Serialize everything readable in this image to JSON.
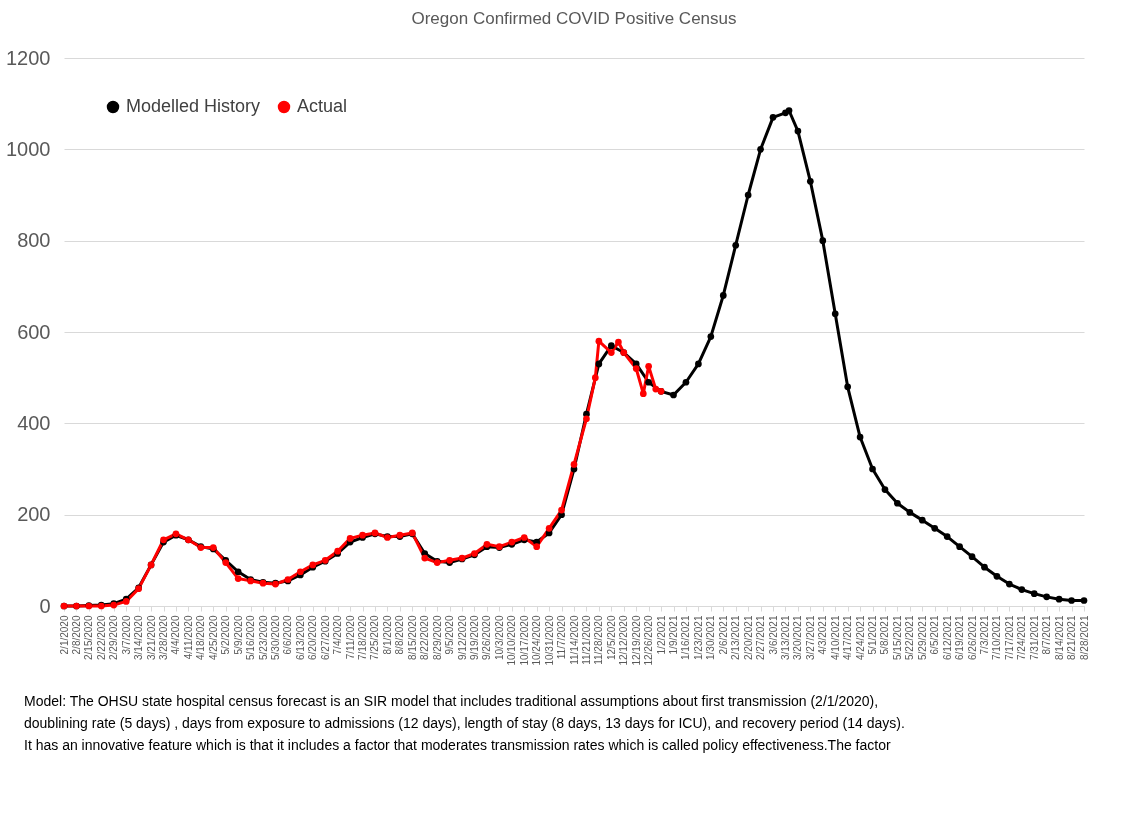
{
  "chart_data": {
    "type": "line",
    "title": "Oregon Confirmed COVID Positive Census",
    "x": [
      "2020-02-01",
      "2020-02-08",
      "2020-02-15",
      "2020-02-22",
      "2020-02-29",
      "2020-03-07",
      "2020-03-14",
      "2020-03-21",
      "2020-03-28",
      "2020-04-04",
      "2020-04-11",
      "2020-04-18",
      "2020-04-25",
      "2020-05-02",
      "2020-05-09",
      "2020-05-16",
      "2020-05-23",
      "2020-05-30",
      "2020-06-06",
      "2020-06-13",
      "2020-06-20",
      "2020-06-27",
      "2020-07-04",
      "2020-07-11",
      "2020-07-18",
      "2020-07-25",
      "2020-08-01",
      "2020-08-08",
      "2020-08-15",
      "2020-08-22",
      "2020-08-29",
      "2020-09-05",
      "2020-09-12",
      "2020-09-19",
      "2020-09-26",
      "2020-10-03",
      "2020-10-10",
      "2020-10-17",
      "2020-10-24",
      "2020-10-31",
      "2020-11-07",
      "2020-11-14",
      "2020-11-21",
      "2020-11-28",
      "2020-12-05",
      "2020-12-12",
      "2020-12-19",
      "2020-12-26",
      "2021-01-02",
      "2021-01-09",
      "2021-01-16",
      "2021-01-23",
      "2021-01-30",
      "2021-02-06",
      "2021-02-13",
      "2021-02-20",
      "2021-02-27",
      "2021-03-06",
      "2021-03-13",
      "2021-03-15",
      "2021-03-20",
      "2021-03-27",
      "2021-04-03",
      "2021-04-10",
      "2021-04-17",
      "2021-04-24",
      "2021-05-01",
      "2021-05-08",
      "2021-05-15",
      "2021-05-22",
      "2021-05-29",
      "2021-06-05",
      "2021-06-12",
      "2021-06-19",
      "2021-06-26",
      "2021-07-03",
      "2021-07-10",
      "2021-07-17",
      "2021-07-24",
      "2021-07-31",
      "2021-08-07",
      "2021-08-14",
      "2021-08-21",
      "2021-08-28"
    ],
    "series": [
      {
        "name": "Modelled History",
        "color": "#000000",
        "values": [
          0,
          0,
          1,
          2,
          5,
          15,
          40,
          90,
          140,
          155,
          145,
          130,
          125,
          100,
          75,
          58,
          52,
          50,
          55,
          68,
          85,
          98,
          115,
          140,
          150,
          158,
          152,
          152,
          158,
          115,
          98,
          95,
          103,
          112,
          130,
          128,
          135,
          145,
          140,
          160,
          200,
          300,
          420,
          530,
          570,
          555,
          530,
          490,
          470,
          462,
          490,
          530,
          590,
          680,
          790,
          900,
          1000,
          1070,
          1080,
          1085,
          1040,
          930,
          800,
          640,
          480,
          370,
          300,
          255,
          225,
          205,
          188,
          170,
          152,
          130,
          108,
          85,
          65,
          48,
          36,
          27,
          20,
          15,
          12,
          12
        ]
      },
      {
        "name": "Actual",
        "color": "#ff0000",
        "x": [
          "2020-02-01",
          "2020-02-08",
          "2020-02-15",
          "2020-02-22",
          "2020-02-29",
          "2020-03-07",
          "2020-03-14",
          "2020-03-21",
          "2020-03-28",
          "2020-04-04",
          "2020-04-11",
          "2020-04-18",
          "2020-04-25",
          "2020-05-02",
          "2020-05-09",
          "2020-05-16",
          "2020-05-23",
          "2020-05-30",
          "2020-06-06",
          "2020-06-13",
          "2020-06-20",
          "2020-06-27",
          "2020-07-04",
          "2020-07-11",
          "2020-07-18",
          "2020-07-25",
          "2020-08-01",
          "2020-08-08",
          "2020-08-15",
          "2020-08-22",
          "2020-08-29",
          "2020-09-05",
          "2020-09-12",
          "2020-09-19",
          "2020-09-26",
          "2020-10-03",
          "2020-10-10",
          "2020-10-17",
          "2020-10-24",
          "2020-10-31",
          "2020-11-07",
          "2020-11-14",
          "2020-11-21",
          "2020-11-26",
          "2020-11-28",
          "2020-12-05",
          "2020-12-09",
          "2020-12-12",
          "2020-12-19",
          "2020-12-23",
          "2020-12-26",
          "2020-12-30",
          "2021-01-02"
        ],
        "values": [
          0,
          0,
          0,
          0,
          2,
          10,
          38,
          90,
          145,
          158,
          145,
          128,
          128,
          95,
          60,
          55,
          50,
          48,
          58,
          75,
          90,
          100,
          120,
          148,
          155,
          160,
          150,
          155,
          160,
          105,
          95,
          100,
          105,
          115,
          135,
          130,
          140,
          150,
          130,
          170,
          210,
          310,
          410,
          500,
          580,
          555,
          578,
          555,
          520,
          465,
          525,
          475,
          470
        ]
      }
    ],
    "xlim": [
      "2020-02-01",
      "2021-08-28"
    ],
    "xticks": [
      {
        "value": "2020-02-01",
        "label": "2/1/2020"
      },
      {
        "value": "2020-02-08",
        "label": "2/8/2020"
      },
      {
        "value": "2020-02-15",
        "label": "2/15/2020"
      },
      {
        "value": "2020-02-22",
        "label": "2/22/2020"
      },
      {
        "value": "2020-02-29",
        "label": "2/29/2020"
      },
      {
        "value": "2020-03-07",
        "label": "3/7/2020"
      },
      {
        "value": "2020-03-14",
        "label": "3/14/2020"
      },
      {
        "value": "2020-03-21",
        "label": "3/21/2020"
      },
      {
        "value": "2020-03-28",
        "label": "3/28/2020"
      },
      {
        "value": "2020-04-04",
        "label": "4/4/2020"
      },
      {
        "value": "2020-04-11",
        "label": "4/11/2020"
      },
      {
        "value": "2020-04-18",
        "label": "4/18/2020"
      },
      {
        "value": "2020-04-25",
        "label": "4/25/2020"
      },
      {
        "value": "2020-05-02",
        "label": "5/2/2020"
      },
      {
        "value": "2020-05-09",
        "label": "5/9/2020"
      },
      {
        "value": "2020-05-16",
        "label": "5/16/2020"
      },
      {
        "value": "2020-05-23",
        "label": "5/23/2020"
      },
      {
        "value": "2020-05-30",
        "label": "5/30/2020"
      },
      {
        "value": "2020-06-06",
        "label": "6/6/2020"
      },
      {
        "value": "2020-06-13",
        "label": "6/13/2020"
      },
      {
        "value": "2020-06-20",
        "label": "6/20/2020"
      },
      {
        "value": "2020-06-27",
        "label": "6/27/2020"
      },
      {
        "value": "2020-07-04",
        "label": "7/4/2020"
      },
      {
        "value": "2020-07-11",
        "label": "7/11/2020"
      },
      {
        "value": "2020-07-18",
        "label": "7/18/2020"
      },
      {
        "value": "2020-07-25",
        "label": "7/25/2020"
      },
      {
        "value": "2020-08-01",
        "label": "8/1/2020"
      },
      {
        "value": "2020-08-08",
        "label": "8/8/2020"
      },
      {
        "value": "2020-08-15",
        "label": "8/15/2020"
      },
      {
        "value": "2020-08-22",
        "label": "8/22/2020"
      },
      {
        "value": "2020-08-29",
        "label": "8/29/2020"
      },
      {
        "value": "2020-09-05",
        "label": "9/5/2020"
      },
      {
        "value": "2020-09-12",
        "label": "9/12/2020"
      },
      {
        "value": "2020-09-19",
        "label": "9/19/2020"
      },
      {
        "value": "2020-09-26",
        "label": "9/26/2020"
      },
      {
        "value": "2020-10-03",
        "label": "10/3/2020"
      },
      {
        "value": "2020-10-10",
        "label": "10/10/2020"
      },
      {
        "value": "2020-10-17",
        "label": "10/17/2020"
      },
      {
        "value": "2020-10-24",
        "label": "10/24/2020"
      },
      {
        "value": "2020-10-31",
        "label": "10/31/2020"
      },
      {
        "value": "2020-11-07",
        "label": "11/7/2020"
      },
      {
        "value": "2020-11-14",
        "label": "11/14/2020"
      },
      {
        "value": "2020-11-21",
        "label": "11/21/2020"
      },
      {
        "value": "2020-11-28",
        "label": "11/28/2020"
      },
      {
        "value": "2020-12-05",
        "label": "12/5/2020"
      },
      {
        "value": "2020-12-12",
        "label": "12/12/2020"
      },
      {
        "value": "2020-12-19",
        "label": "12/19/2020"
      },
      {
        "value": "2020-12-26",
        "label": "12/26/2020"
      },
      {
        "value": "2021-01-02",
        "label": "1/2/2021"
      },
      {
        "value": "2021-01-09",
        "label": "1/9/2021"
      },
      {
        "value": "2021-01-16",
        "label": "1/16/2021"
      },
      {
        "value": "2021-01-23",
        "label": "1/23/2021"
      },
      {
        "value": "2021-01-30",
        "label": "1/30/2021"
      },
      {
        "value": "2021-02-06",
        "label": "2/6/2021"
      },
      {
        "value": "2021-02-13",
        "label": "2/13/2021"
      },
      {
        "value": "2021-02-20",
        "label": "2/20/2021"
      },
      {
        "value": "2021-02-27",
        "label": "2/27/2021"
      },
      {
        "value": "2021-03-06",
        "label": "3/6/2021"
      },
      {
        "value": "2021-03-13",
        "label": "3/13/2021"
      },
      {
        "value": "2021-03-20",
        "label": "3/20/2021"
      },
      {
        "value": "2021-03-27",
        "label": "3/27/2021"
      },
      {
        "value": "2021-04-03",
        "label": "4/3/2021"
      },
      {
        "value": "2021-04-10",
        "label": "4/10/2021"
      },
      {
        "value": "2021-04-17",
        "label": "4/17/2021"
      },
      {
        "value": "2021-04-24",
        "label": "4/24/2021"
      },
      {
        "value": "2021-05-01",
        "label": "5/1/2021"
      },
      {
        "value": "2021-05-08",
        "label": "5/8/2021"
      },
      {
        "value": "2021-05-15",
        "label": "5/15/2021"
      },
      {
        "value": "2021-05-22",
        "label": "5/22/2021"
      },
      {
        "value": "2021-05-29",
        "label": "5/29/2021"
      },
      {
        "value": "2021-06-05",
        "label": "6/5/2021"
      },
      {
        "value": "2021-06-12",
        "label": "6/12/2021"
      },
      {
        "value": "2021-06-19",
        "label": "6/19/2021"
      },
      {
        "value": "2021-06-26",
        "label": "6/26/2021"
      },
      {
        "value": "2021-07-03",
        "label": "7/3/2021"
      },
      {
        "value": "2021-07-10",
        "label": "7/10/2021"
      },
      {
        "value": "2021-07-17",
        "label": "7/17/2021"
      },
      {
        "value": "2021-07-24",
        "label": "7/24/2021"
      },
      {
        "value": "2021-07-31",
        "label": "7/31/2021"
      },
      {
        "value": "2021-08-07",
        "label": "8/7/2021"
      },
      {
        "value": "2021-08-14",
        "label": "8/14/2021"
      },
      {
        "value": "2021-08-21",
        "label": "8/21/2021"
      },
      {
        "value": "2021-08-28",
        "label": "8/28/2021"
      }
    ],
    "ylim": [
      0,
      1200
    ],
    "yticks": [
      0,
      200,
      400,
      600,
      800,
      1000,
      1200
    ],
    "grid": "y",
    "legend": "top left",
    "marker": "circle",
    "line_style": "solid",
    "annotations": [
      "Model: The OHSU state hospital census forecast is an SIR model that includes traditional assumptions about first transmission (2/1/2020),",
      "doublining rate (5  days) , days from exposure to admissions (12 days), length of stay (8 days, 13 days for ICU), and recovery period (14 days).",
      "It has an innovative feature which is that it includes a factor that moderates transmission rates which is called policy effectiveness.The factor"
    ]
  }
}
